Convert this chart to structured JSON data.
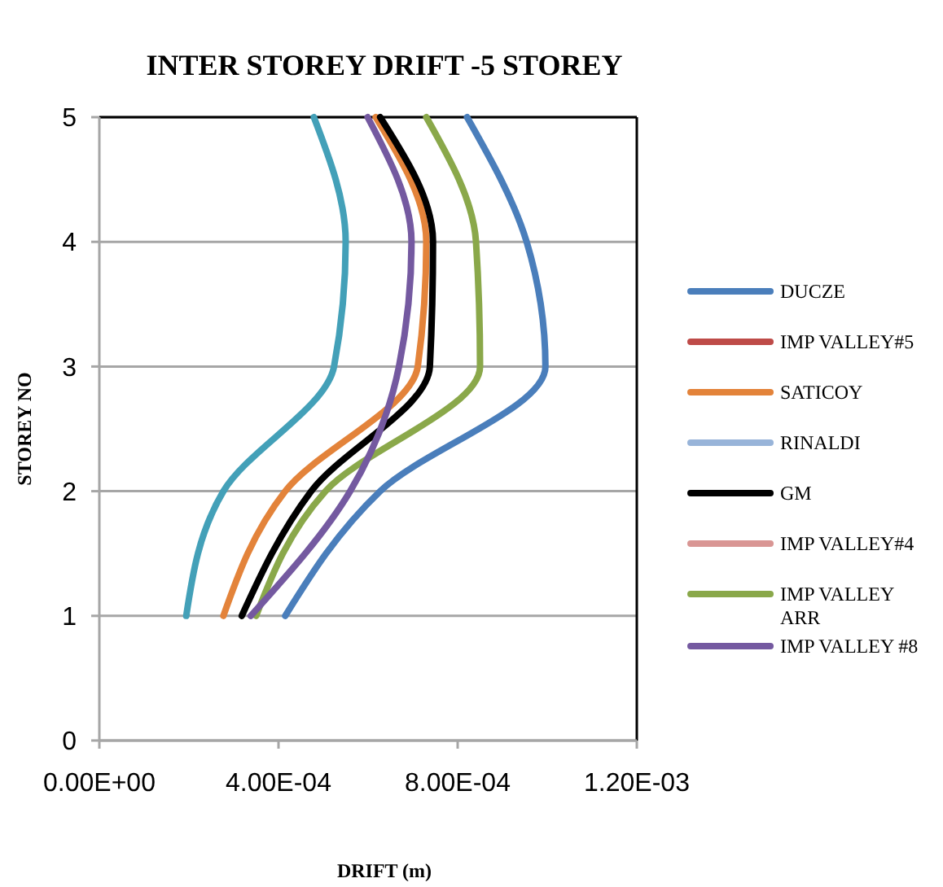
{
  "chart_data": {
    "type": "line",
    "title": "INTER STOREY DRIFT -5 STOREY",
    "xlabel": "DRIFT (m)",
    "ylabel": "STOREY NO",
    "xlim": [
      0,
      0.0012
    ],
    "xticks": [
      {
        "value": 0,
        "label": "0.00E+00"
      },
      {
        "value": 0.0004,
        "label": "4.00E-04"
      },
      {
        "value": 0.0008,
        "label": "8.00E-04"
      },
      {
        "value": 0.0012,
        "label": "1.20E-03"
      }
    ],
    "ylim": [
      0,
      5
    ],
    "yticks": [
      0,
      1,
      2,
      3,
      4,
      5
    ],
    "grid": "y",
    "legend": "right",
    "marker": "none",
    "line_style": "solid",
    "series": [
      {
        "name": "DUCZE",
        "color": "#4a7ebb",
        "x": [
          0.000415,
          0.000627,
          0.000996,
          0.000954,
          0.000821
        ],
        "values": [
          1,
          2,
          3,
          4,
          5
        ]
      },
      {
        "name": "IMP VALLEY#5",
        "color": "#be4b48",
        "x": [
          null,
          null,
          null,
          null,
          null
        ],
        "values": [
          null,
          null,
          null,
          null,
          null
        ]
      },
      {
        "name": "SATICOY",
        "color": "#e3833a",
        "x": [
          0.000277,
          0.000415,
          0.000711,
          0.00073,
          0.000617
        ],
        "values": [
          1,
          2,
          3,
          4,
          5
        ]
      },
      {
        "name": "RINALDI",
        "color": "#98b4d9",
        "x": [
          null,
          null,
          null,
          null,
          null
        ],
        "values": [
          null,
          null,
          null,
          null,
          null
        ]
      },
      {
        "name": "GM",
        "color": "#000000",
        "x": [
          0.000318,
          0.000473,
          0.000738,
          0.000745,
          0.000627
        ],
        "values": [
          1,
          2,
          3,
          4,
          5
        ]
      },
      {
        "name": "IMP VALLEY#4",
        "color": "#d99694",
        "x": [
          null,
          null,
          null,
          null,
          null
        ],
        "values": [
          null,
          null,
          null,
          null,
          null
        ]
      },
      {
        "name": "IMP VALLEY ARR",
        "color": "#8aa84a",
        "x": [
          0.00035,
          0.000505,
          0.00085,
          0.000841,
          0.00073
        ],
        "values": [
          1,
          2,
          3,
          4,
          5
        ]
      },
      {
        "name": "IMP VALLEY #8",
        "color": "#7459a0",
        "x": [
          0.000338,
          0.00056,
          0.000669,
          0.000697,
          0.000599
        ],
        "values": [
          1,
          2,
          3,
          4,
          5
        ]
      },
      {
        "color": "#43a0b8",
        "x": [
          0.000194,
          0.000277,
          0.000524,
          0.00055,
          0.000479
        ],
        "values": [
          1,
          2,
          3,
          4,
          5
        ]
      }
    ]
  }
}
